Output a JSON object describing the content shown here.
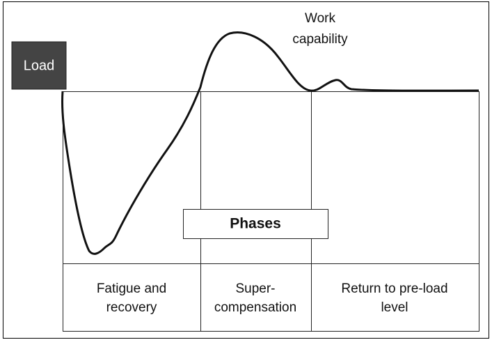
{
  "load": "Load",
  "annotation": [
    "Work",
    "capability"
  ],
  "center_label": "Phases",
  "phases": [
    [
      "Fatigue and",
      "recovery"
    ],
    [
      "Super-",
      "compensation"
    ],
    [
      "Return to pre-load",
      "level"
    ]
  ]
}
